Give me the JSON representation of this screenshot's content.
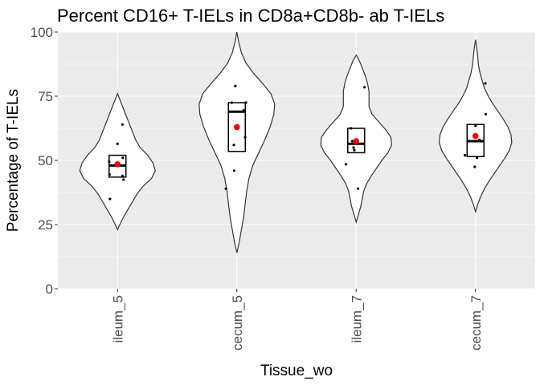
{
  "chart_data": {
    "type": "violin",
    "title": "Percent CD16+ T-IELs in CD8a+CD8b- ab T-IELs",
    "xlabel": "Tissue_wo",
    "ylabel": "Percentage of T-IELs",
    "ylim": [
      0,
      100
    ],
    "yticks": [
      0,
      25,
      50,
      75,
      100
    ],
    "categories": [
      "ileum_5",
      "cecum_5",
      "ileum_7",
      "cecum_7"
    ],
    "colors": {
      "panel": "#ebebeb",
      "grid": "#ffffff",
      "violin_fill": "#ffffff",
      "outline": "#333333",
      "mean": "#ff0000",
      "point": "#000000"
    },
    "groups": [
      {
        "name": "ileum_5",
        "violin_range": [
          23,
          76
        ],
        "violin_width": [
          [
            23,
            0
          ],
          [
            25,
            0.03
          ],
          [
            28,
            0.08
          ],
          [
            31,
            0.14
          ],
          [
            34,
            0.2
          ],
          [
            37,
            0.26
          ],
          [
            40,
            0.34
          ],
          [
            43,
            0.45
          ],
          [
            46,
            0.5
          ],
          [
            49,
            0.47
          ],
          [
            52,
            0.4
          ],
          [
            55,
            0.3
          ],
          [
            58,
            0.24
          ],
          [
            61,
            0.2
          ],
          [
            64,
            0.16
          ],
          [
            67,
            0.12
          ],
          [
            70,
            0.08
          ],
          [
            73,
            0.04
          ],
          [
            76,
            0
          ]
        ],
        "box": {
          "q1": 43.5,
          "median": 48,
          "q3": 52
        },
        "mean": 48.5,
        "points": [
          [
            0.13,
            64
          ],
          [
            0.0,
            56.5
          ],
          [
            0.14,
            51
          ],
          [
            -0.22,
            49.5
          ],
          [
            0.13,
            44
          ],
          [
            0.16,
            42.5
          ],
          [
            -0.21,
            44.5
          ],
          [
            -0.2,
            35
          ]
        ]
      },
      {
        "name": "cecum_5",
        "violin_range": [
          14,
          100
        ],
        "violin_width": [
          [
            14,
            0
          ],
          [
            18,
            0.03
          ],
          [
            23,
            0.06
          ],
          [
            28,
            0.09
          ],
          [
            33,
            0.11
          ],
          [
            38,
            0.13
          ],
          [
            43,
            0.16
          ],
          [
            48,
            0.21
          ],
          [
            53,
            0.29
          ],
          [
            58,
            0.37
          ],
          [
            63,
            0.44
          ],
          [
            68,
            0.49
          ],
          [
            72,
            0.5
          ],
          [
            76,
            0.45
          ],
          [
            80,
            0.34
          ],
          [
            84,
            0.22
          ],
          [
            88,
            0.12
          ],
          [
            92,
            0.06
          ],
          [
            96,
            0.025
          ],
          [
            100,
            0
          ]
        ],
        "box": {
          "q1": 53.5,
          "median": 69,
          "q3": 72.5
        },
        "mean": 63,
        "points": [
          [
            -0.04,
            79
          ],
          [
            -0.13,
            72.5
          ],
          [
            0.24,
            72.5
          ],
          [
            0.18,
            69.5
          ],
          [
            -0.08,
            56
          ],
          [
            0.22,
            59
          ],
          [
            -0.07,
            46
          ],
          [
            -0.29,
            39
          ]
        ]
      },
      {
        "name": "ileum_7",
        "violin_range": [
          26,
          91
        ],
        "violin_width": [
          [
            26,
            0
          ],
          [
            29,
            0.03
          ],
          [
            32,
            0.06
          ],
          [
            35,
            0.08
          ],
          [
            38,
            0.1
          ],
          [
            41,
            0.14
          ],
          [
            44,
            0.2
          ],
          [
            47,
            0.27
          ],
          [
            50,
            0.34
          ],
          [
            53,
            0.42
          ],
          [
            56,
            0.47
          ],
          [
            59,
            0.46
          ],
          [
            62,
            0.39
          ],
          [
            65,
            0.3
          ],
          [
            68,
            0.21
          ],
          [
            71,
            0.17
          ],
          [
            74,
            0.17
          ],
          [
            77,
            0.17
          ],
          [
            80,
            0.15
          ],
          [
            83,
            0.12
          ],
          [
            86,
            0.08
          ],
          [
            89,
            0.04
          ],
          [
            91,
            0
          ]
        ],
        "box": {
          "q1": 53,
          "median": 56.5,
          "q3": 62.5
        },
        "mean": 57.5,
        "points": [
          [
            0.22,
            78.5
          ],
          [
            -0.14,
            62.5
          ],
          [
            -0.1,
            57.5
          ],
          [
            -0.07,
            55
          ],
          [
            -0.05,
            54
          ],
          [
            -0.27,
            48.5
          ],
          [
            0.05,
            39
          ]
        ]
      },
      {
        "name": "cecum_7",
        "violin_range": [
          30,
          97
        ],
        "violin_width": [
          [
            30,
            0
          ],
          [
            33,
            0.03
          ],
          [
            36,
            0.07
          ],
          [
            39,
            0.12
          ],
          [
            42,
            0.18
          ],
          [
            45,
            0.25
          ],
          [
            48,
            0.32
          ],
          [
            51,
            0.39
          ],
          [
            54,
            0.45
          ],
          [
            57,
            0.48
          ],
          [
            60,
            0.47
          ],
          [
            63,
            0.43
          ],
          [
            66,
            0.37
          ],
          [
            69,
            0.3
          ],
          [
            72,
            0.23
          ],
          [
            75,
            0.17
          ],
          [
            78,
            0.12
          ],
          [
            81,
            0.09
          ],
          [
            84,
            0.06
          ],
          [
            87,
            0.04
          ],
          [
            90,
            0.03
          ],
          [
            93,
            0.02
          ],
          [
            97,
            0
          ]
        ],
        "box": {
          "q1": 51.5,
          "median": 57.5,
          "q3": 64
        },
        "mean": 59.5,
        "points": [
          [
            0.26,
            80
          ],
          [
            0.0,
            63.5
          ],
          [
            0.27,
            68
          ],
          [
            0.1,
            58
          ],
          [
            -0.28,
            52
          ],
          [
            0.04,
            51
          ],
          [
            -0.02,
            47.5
          ]
        ]
      }
    ]
  }
}
